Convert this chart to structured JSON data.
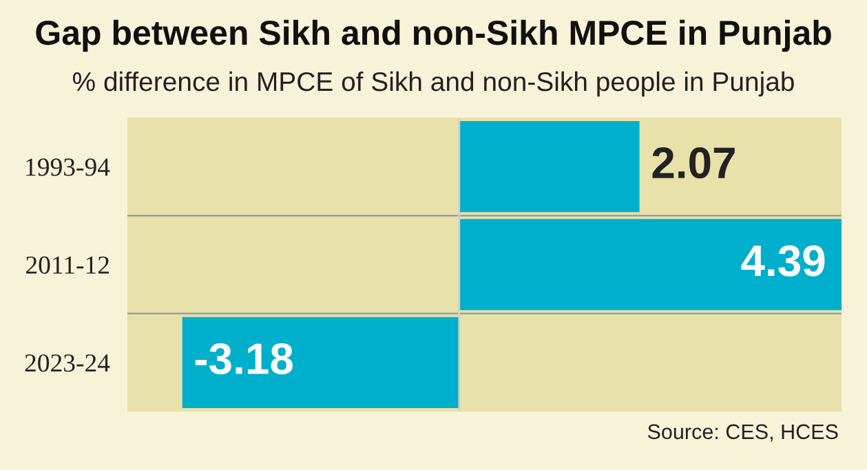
{
  "chart_data": {
    "type": "bar",
    "orientation": "horizontal",
    "title": "Gap between Sikh and non-Sikh MPCE in Punjab",
    "subtitle": "% difference in MPCE of Sikh and non-Sikh people in Punjab",
    "categories": [
      "1993-94",
      "2011-12",
      "2023-24"
    ],
    "values": [
      2.07,
      4.39,
      -3.18
    ],
    "color": "#00afcc",
    "xlim": [
      -3.81,
      4.39
    ],
    "data_labels": true,
    "tick_labels": "y",
    "grid": false,
    "legend": false,
    "annotations": [
      "Source: CES, HCES"
    ]
  }
}
